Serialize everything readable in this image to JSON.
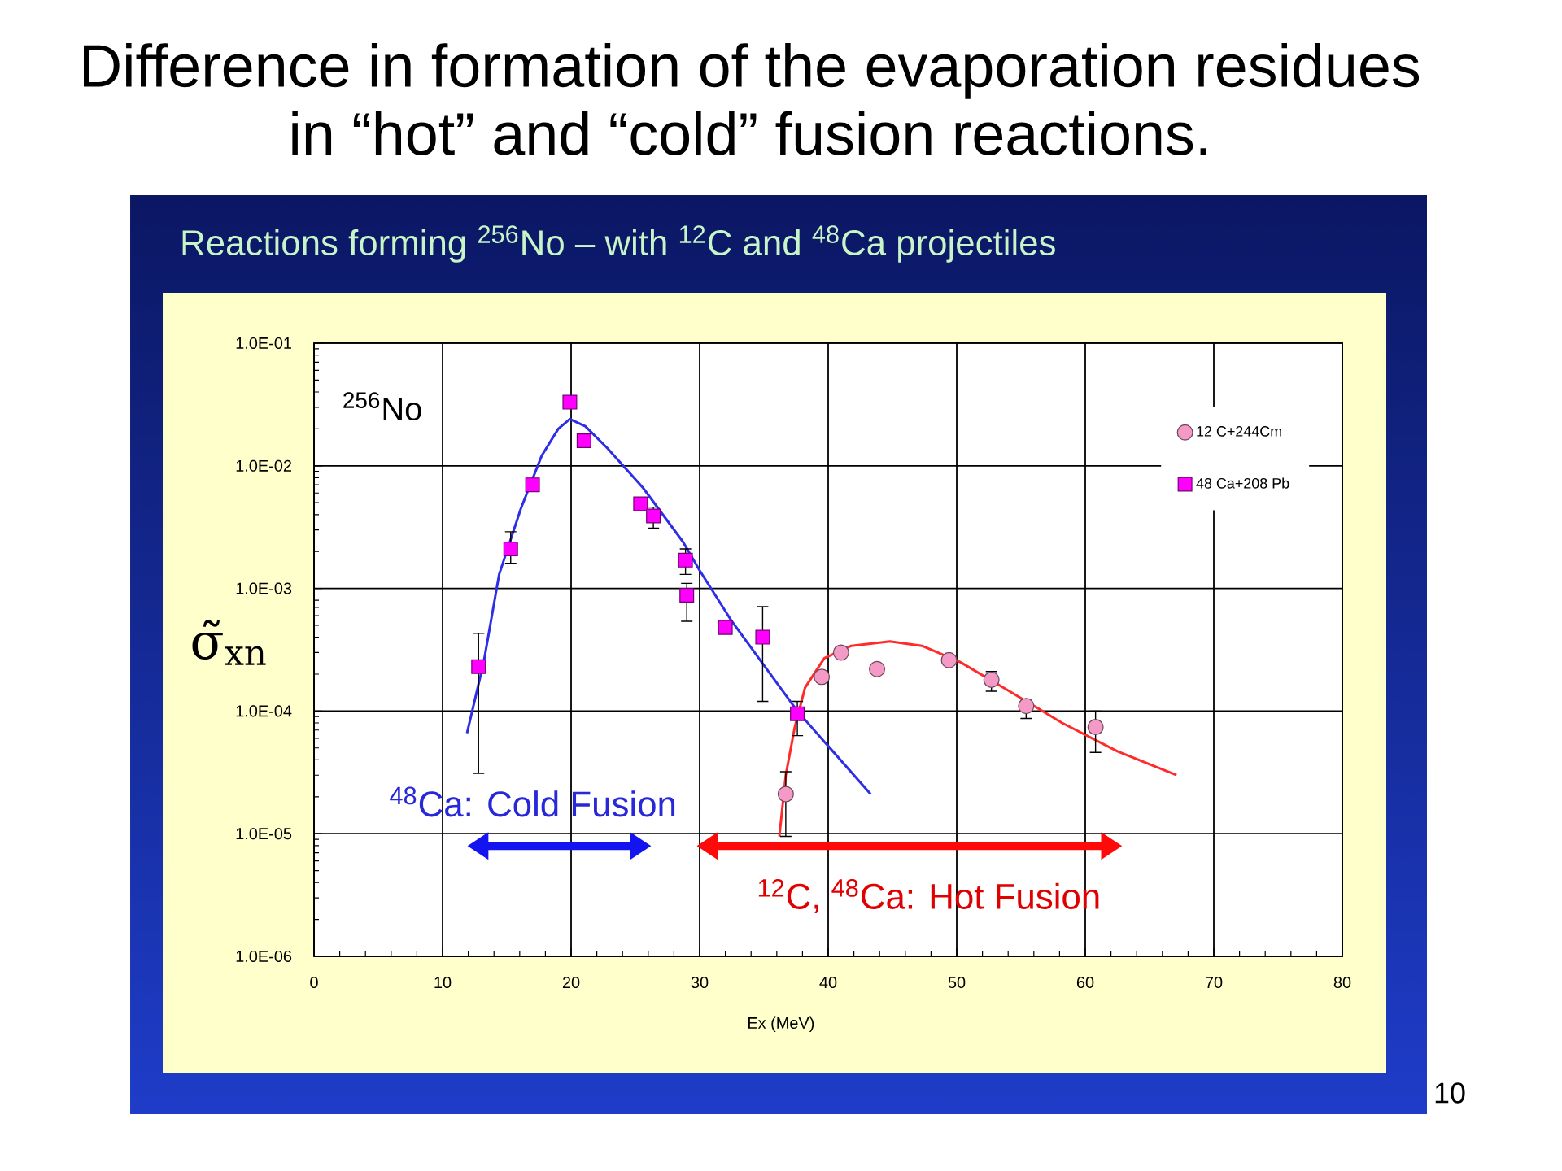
{
  "chart_data": {
    "type": "scatter",
    "title": "Difference in formation of the evaporation residues in “hot” and “cold” fusion reactions.",
    "subtitle": "Reactions forming $^{256}$No – with $^{12}$C and $^{48}$Ca projectiles",
    "xlabel": "Ex (MeV)",
    "ylabel": "σ̃$_{xn}$",
    "annotations": [
      "$^{256}$No",
      "$^{48}$Ca: Cold Fusion",
      "$^{12}$C, $^{48}$Ca: Hot Fusion",
      "10"
    ],
    "xlim": [
      0,
      80
    ],
    "xticks": [
      0,
      10,
      20,
      30,
      40,
      50,
      60,
      70,
      80
    ],
    "ylim": [
      1e-06,
      0.1
    ],
    "yticks": [
      {
        "value": 1e-06,
        "label": "1.0E-06"
      },
      {
        "value": 1e-05,
        "label": "1.0E-05"
      },
      {
        "value": 0.0001,
        "label": "1.0E-04"
      },
      {
        "value": 0.001,
        "label": "1.0E-03"
      },
      {
        "value": 0.01,
        "label": "1.0E-02"
      },
      {
        "value": 0.1,
        "label": "1.0E-01"
      }
    ],
    "log": "y",
    "grid": true,
    "legend": "top right",
    "series": [
      {
        "type": "line",
        "color": "#2e2ee6",
        "x": [
          11.9,
          13.2,
          14.4,
          16.1,
          17.7,
          19.0,
          19.9,
          21.1,
          22.8,
          25.6,
          28.7,
          30.0,
          32.5,
          37.6,
          43.3
        ],
        "values": [
          6.6e-05,
          0.00025,
          0.0013,
          0.0045,
          0.012,
          0.02,
          0.024,
          0.021,
          0.014,
          0.0066,
          0.0024,
          0.0014,
          0.00054,
          0.0001,
          2.1e-05
        ]
      },
      {
        "type": "line",
        "color": "#ff2a2a",
        "x": [
          36.2,
          36.7,
          37.4,
          38.2,
          39.7,
          41.8,
          44.8,
          47.3,
          50.3,
          54.1,
          58.2,
          62.5,
          67.1
        ],
        "values": [
          9.5e-06,
          3e-05,
          7.4e-05,
          0.000155,
          0.00027,
          0.00034,
          0.00037,
          0.00034,
          0.00025,
          0.000145,
          8e-05,
          4.7e-05,
          3e-05
        ]
      },
      {
        "name": "12 C+244Cm",
        "marker": "circle",
        "color": "#f39bc6",
        "x": [
          36.7,
          39.5,
          41.0,
          43.8,
          49.4,
          52.7,
          55.4,
          60.8
        ],
        "values": [
          2.1e-05,
          0.00019,
          0.0003,
          0.00022,
          0.00026,
          0.00018,
          0.00011,
          7.4e-05
        ],
        "errors": [
          [
            9.5e-06,
            3.2e-05
          ],
          null,
          null,
          null,
          null,
          [
            0.000145,
            0.00021
          ],
          [
            8.7e-05,
            0.000125
          ],
          [
            4.6e-05,
            0.0001
          ]
        ]
      },
      {
        "name": "48 Ca+208 Pb",
        "marker": "square",
        "color": "#ff00ff",
        "x": [
          12.8,
          15.3,
          17.0,
          19.9,
          21.0,
          25.4,
          26.4,
          28.9,
          29.0,
          32.0,
          34.9,
          37.6
        ],
        "values": [
          0.00023,
          0.0021,
          0.007,
          0.033,
          0.016,
          0.0049,
          0.0039,
          0.0017,
          0.00088,
          0.00048,
          0.0004,
          9.5e-05
        ],
        "errors": [
          [
            3.1e-05,
            0.00043
          ],
          [
            0.0016,
            0.0029
          ],
          null,
          null,
          null,
          null,
          [
            0.0031,
            0.0046
          ],
          [
            0.0013,
            0.0021
          ],
          [
            0.00054,
            0.0011
          ],
          null,
          [
            0.00012,
            0.00071
          ],
          [
            6.3e-05,
            0.00012
          ]
        ]
      }
    ]
  }
}
